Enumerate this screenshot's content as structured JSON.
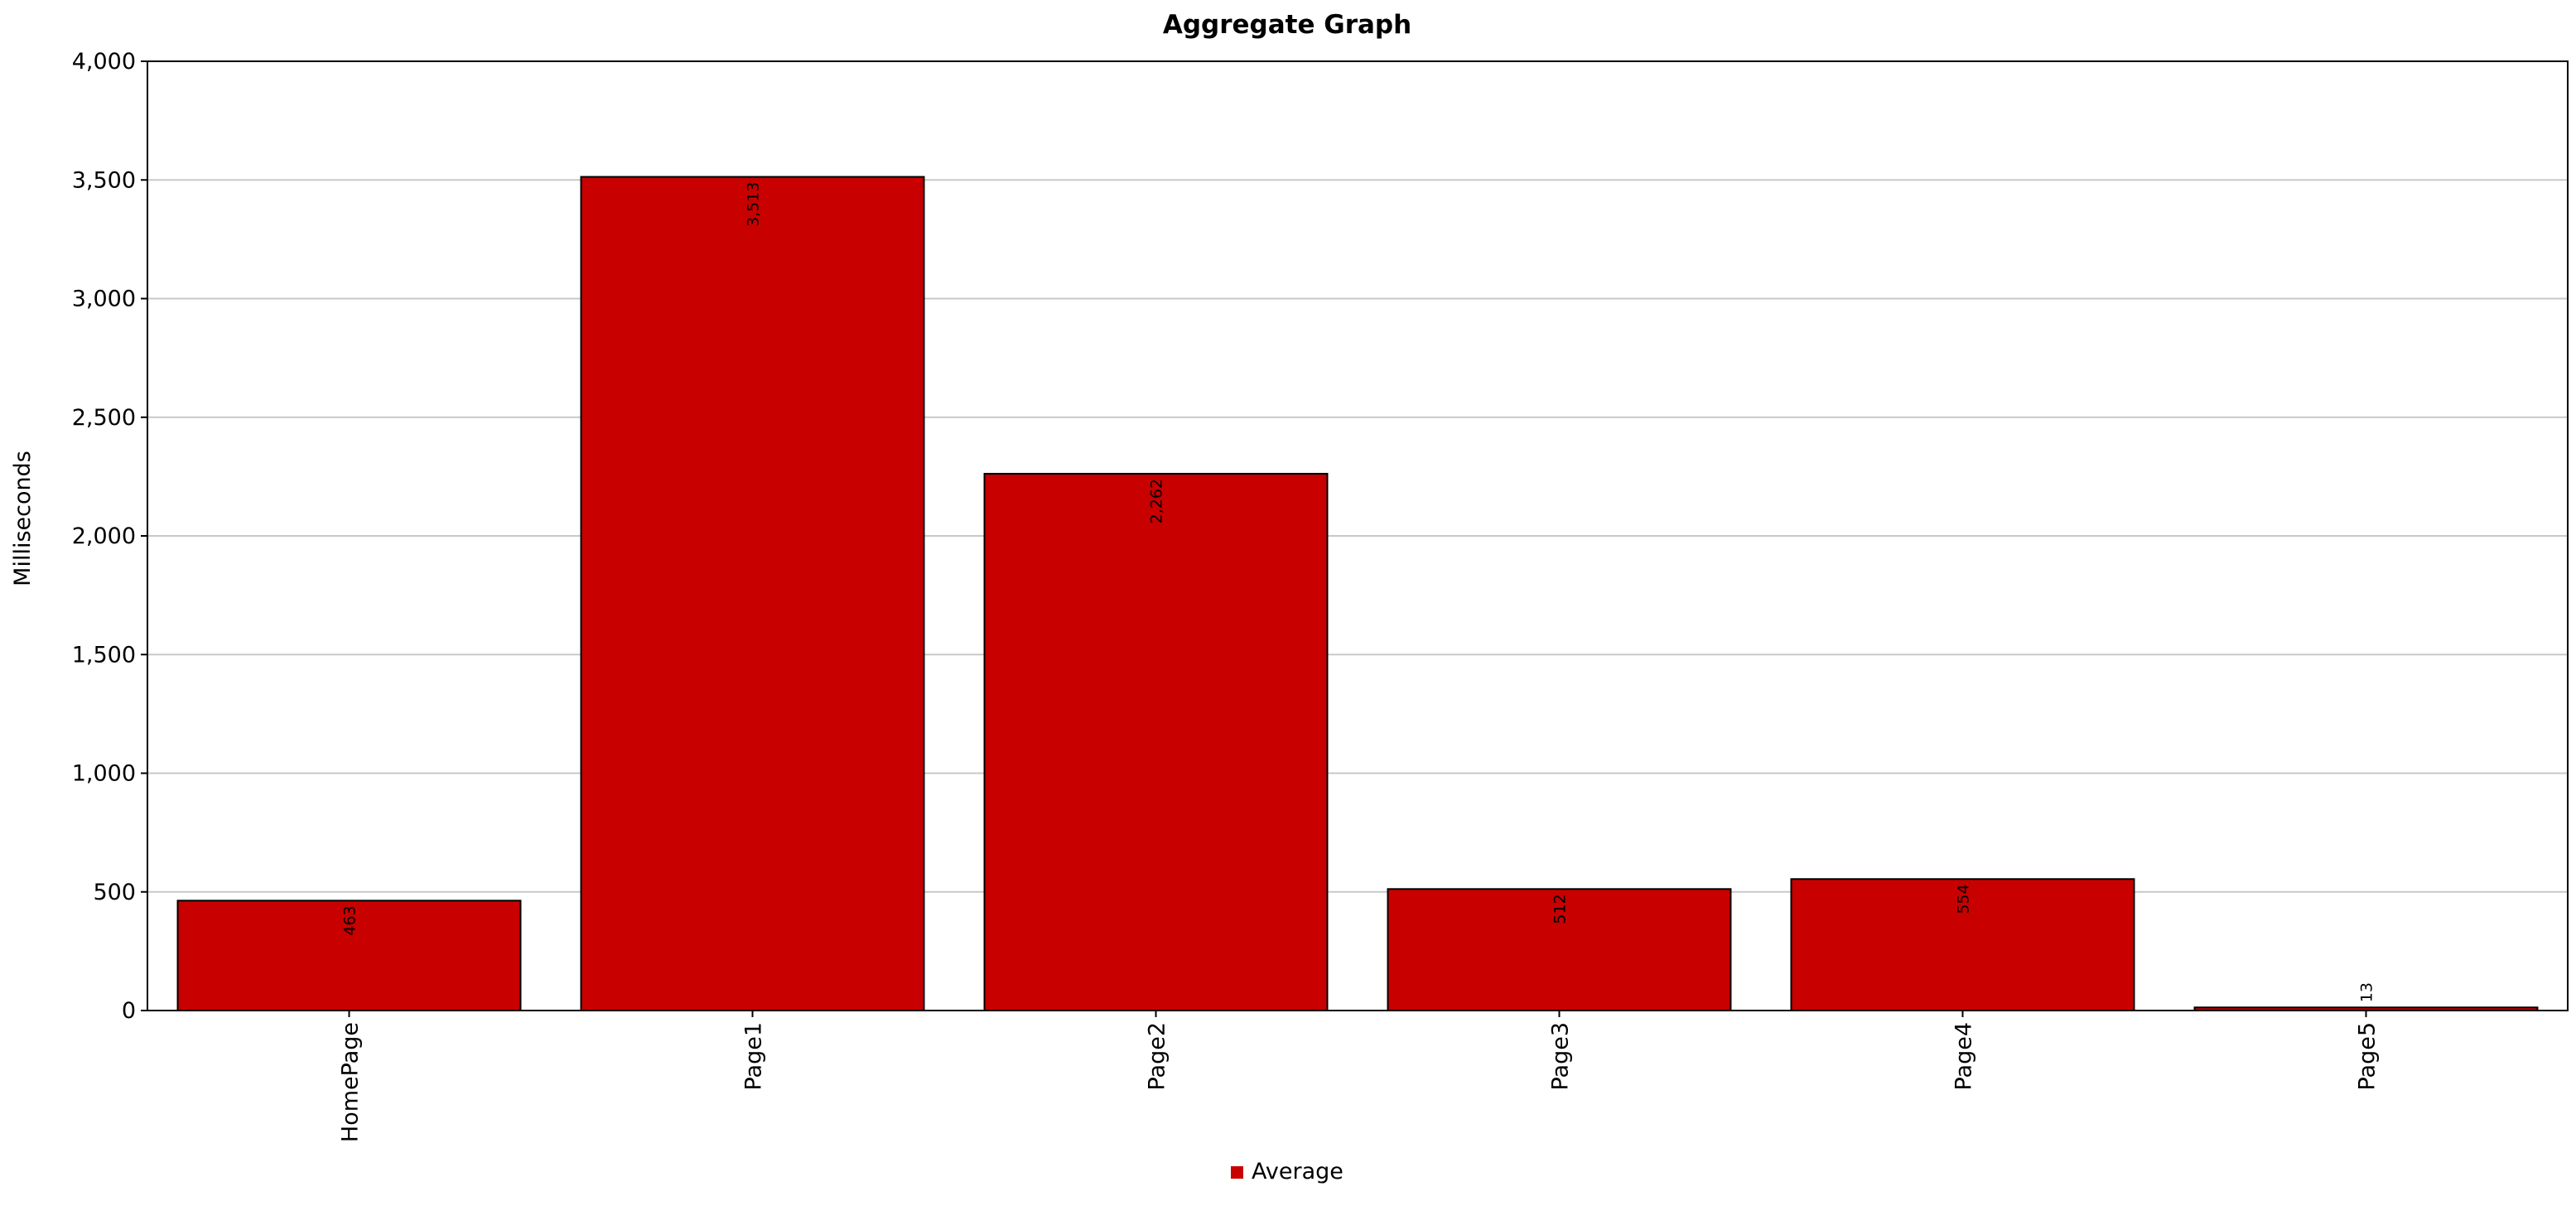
{
  "chart_data": {
    "type": "bar",
    "title": "Aggregate Graph",
    "xlabel": "",
    "ylabel": "Milliseconds",
    "categories": [
      "HomePage",
      "Page1",
      "Page2",
      "Page3",
      "Page4",
      "Page5"
    ],
    "series": [
      {
        "name": "Average",
        "values": [
          463,
          3513,
          2262,
          512,
          554,
          13
        ],
        "value_labels": [
          "463",
          "3,513",
          "2,262",
          "512",
          "554",
          "13"
        ]
      }
    ],
    "ylim": [
      0,
      4000
    ],
    "yticks": [
      0,
      500,
      1000,
      1500,
      2000,
      2500,
      3000,
      3500,
      4000
    ],
    "ytick_labels": [
      "0",
      "500",
      "1,000",
      "1,500",
      "2,000",
      "2,500",
      "3,000",
      "3,500",
      "4,000"
    ],
    "grid": true,
    "legend_position": "bottom-center",
    "colors": {
      "bar_fill": "#c80000",
      "bar_stroke": "#000000",
      "grid": "#c8c8c8",
      "axis": "#000000",
      "background": "#ffffff"
    }
  }
}
